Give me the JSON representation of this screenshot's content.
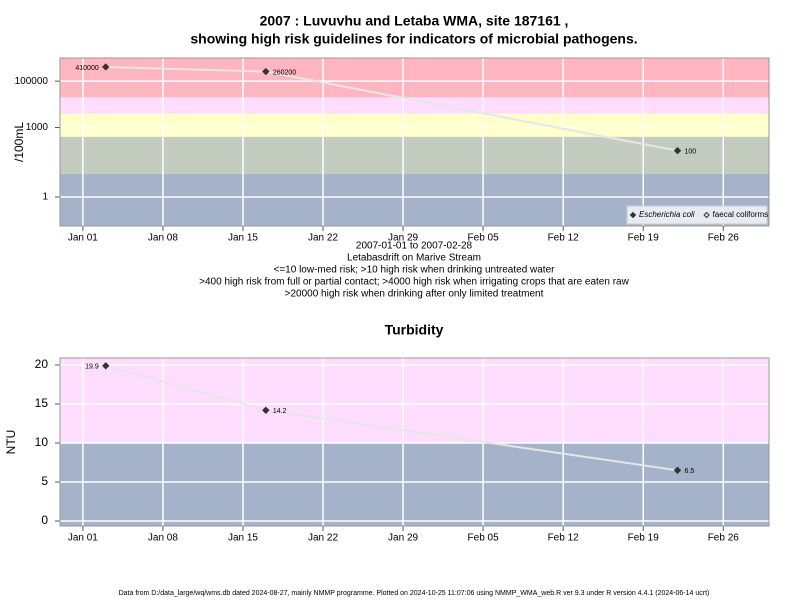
{
  "chart_data": [
    {
      "type": "line",
      "title": "2007 : Luvuvhu and Letaba WMA, site 187161 ,",
      "subtitle": "showing high risk guidelines for indicators of microbial pathogens.",
      "annotations": [
        "2007-01-01 to 2007-02-28",
        "Letabasdrift on Marive Stream",
        "<=10 low-med risk; >10 high risk when drinking untreated water",
        ">400 high risk from full or partial contact; >4000 high risk when irrigating crops that are eaten raw",
        ">20000 high risk when drinking after only limited treatment"
      ],
      "y_label": "/100mL",
      "x": [
        "2007-01-03",
        "2007-01-17",
        "2007-02-22"
      ],
      "series": [
        {
          "name": "Escherichia coli",
          "color": "#333333",
          "marker": "filled-diamond",
          "values": [
            410000,
            260200,
            100
          ]
        },
        {
          "name": "faecal coliforms",
          "color": "#333333",
          "marker": "open-diamond",
          "values": [
            null,
            null,
            null
          ]
        }
      ],
      "line_color": "#e6e6e6",
      "log_y": true,
      "ylim": [
        0.056,
        1000000
      ],
      "yticks": [
        1,
        1000,
        100000
      ],
      "xlim": [
        "2006-12-30",
        "2007-03-02"
      ],
      "xticks": [
        {
          "value": "2007-01-01",
          "label": "Jan 01"
        },
        {
          "value": "2007-01-08",
          "label": "Jan 08"
        },
        {
          "value": "2007-01-15",
          "label": "Jan 15"
        },
        {
          "value": "2007-01-22",
          "label": "Jan 22"
        },
        {
          "value": "2007-01-29",
          "label": "Jan 29"
        },
        {
          "value": "2007-02-05",
          "label": "Feb 05"
        },
        {
          "value": "2007-02-12",
          "label": "Feb 12"
        },
        {
          "value": "2007-02-19",
          "label": "Feb 19"
        },
        {
          "value": "2007-02-26",
          "label": "Feb 26"
        }
      ],
      "band_breaks": [
        10,
        400,
        4000,
        20000
      ],
      "band_colors": [
        "#a4b3c9",
        "#c4ccc0",
        "#ffffcc",
        "#ffddff",
        "#ffb6c1"
      ],
      "grid": true,
      "legend": "bottom-right"
    },
    {
      "type": "line",
      "title": "Turbidity",
      "y_label": "NTU",
      "x": [
        "2007-01-03",
        "2007-01-17",
        "2007-02-22"
      ],
      "series": [
        {
          "name": "Turbidity",
          "color": "#333333",
          "marker": "filled-diamond",
          "values": [
            19.9,
            14.2,
            6.5
          ]
        }
      ],
      "line_color": "#e6e6e6",
      "log_y": false,
      "ylim": [
        -0.64,
        20.9
      ],
      "yticks": [
        0,
        5,
        10,
        15,
        20
      ],
      "xlim": [
        "2006-12-30",
        "2007-03-02"
      ],
      "xticks": [
        {
          "value": "2007-01-01",
          "label": "Jan 01"
        },
        {
          "value": "2007-01-08",
          "label": "Jan 08"
        },
        {
          "value": "2007-01-15",
          "label": "Jan 15"
        },
        {
          "value": "2007-01-22",
          "label": "Jan 22"
        },
        {
          "value": "2007-01-29",
          "label": "Jan 29"
        },
        {
          "value": "2007-02-05",
          "label": "Feb 05"
        },
        {
          "value": "2007-02-12",
          "label": "Feb 12"
        },
        {
          "value": "2007-02-19",
          "label": "Feb 19"
        },
        {
          "value": "2007-02-26",
          "label": "Feb 26"
        }
      ],
      "band_breaks": [
        10
      ],
      "band_colors": [
        "#a4b3c9",
        "#ffddff"
      ],
      "grid": true
    }
  ],
  "footer": "Data from D:/data_large/wq/wms.db dated 2024-08-27, mainly NMMP programme. Plotted on 2024-10-25 11:07:06 using NMMP_WMA_web.R ver 9.3 under R version 4.4.1 (2024-06-14 ucrt)"
}
